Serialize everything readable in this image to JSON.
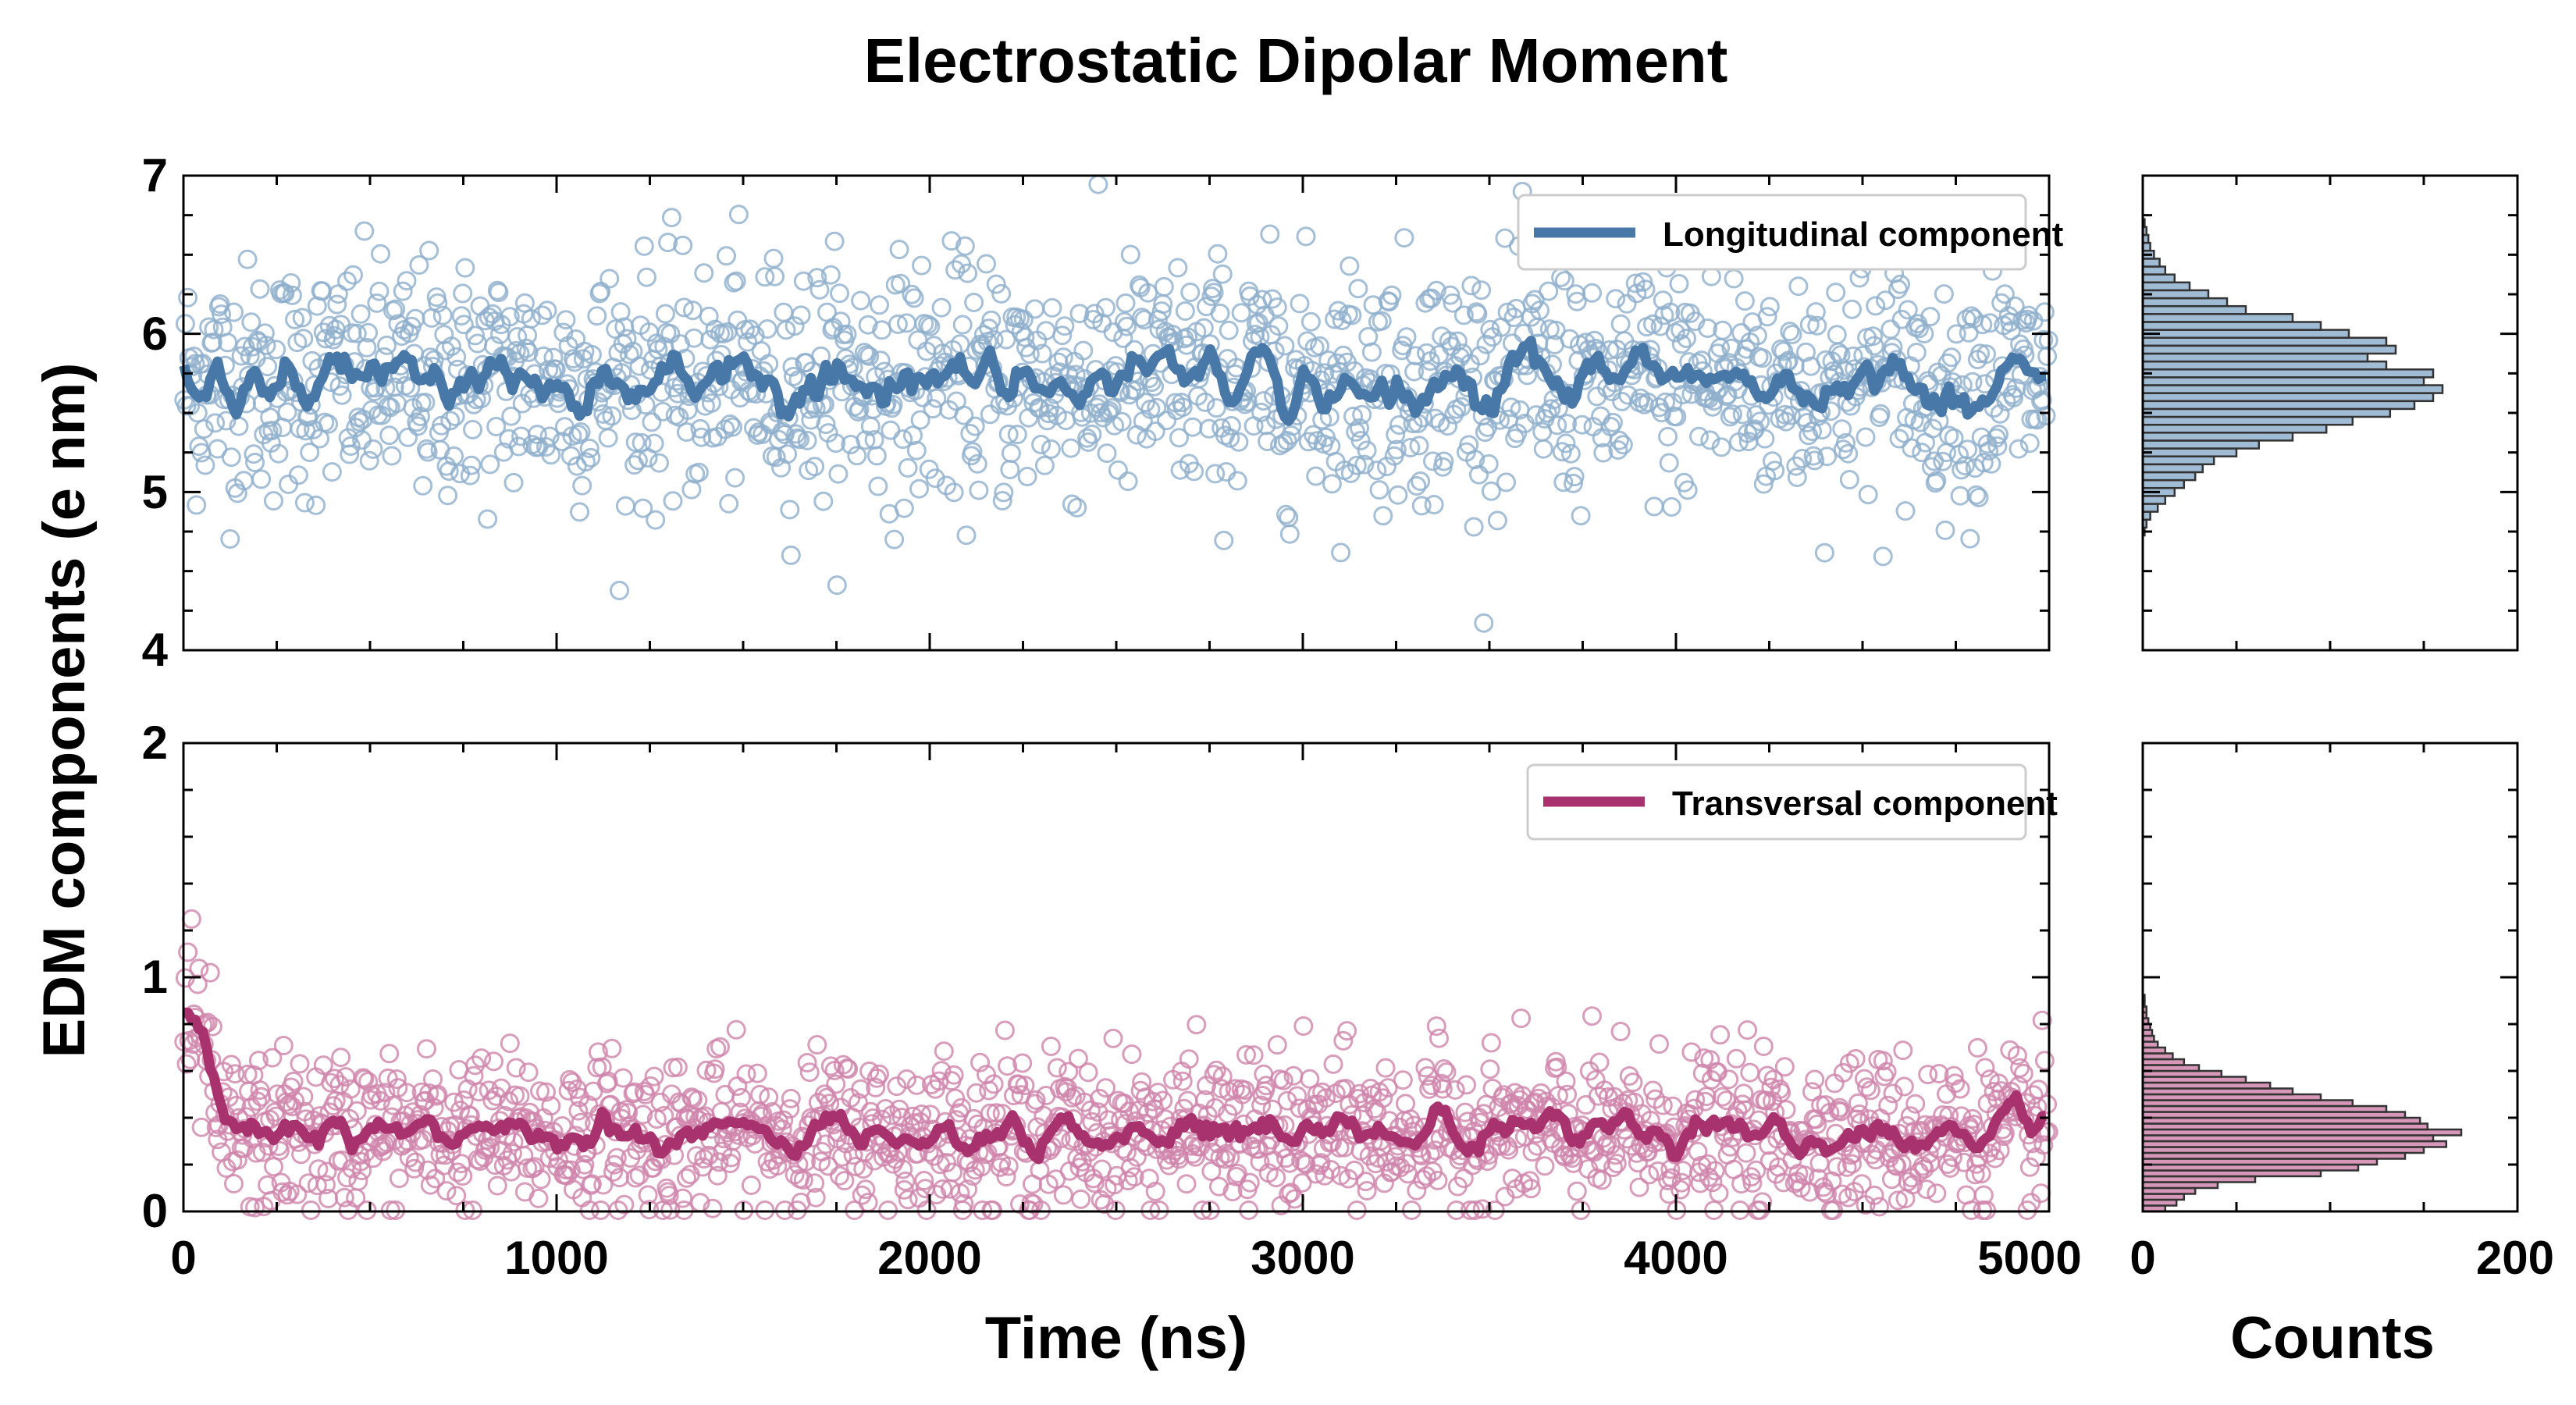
{
  "chart_data": {
    "type": "scatter",
    "title": "Electrostatic Dipolar Moment",
    "ylabel": "EDM components (e nm)",
    "xlabel": "Time (ns)",
    "hist_xlabel": "Counts",
    "grid": false,
    "x_ticks": [
      "0",
      "1000",
      "2000",
      "3000",
      "4000",
      "5000"
    ],
    "hist_x_ticks": [
      "0",
      "200"
    ],
    "panels": [
      {
        "name": "Longitudinal component",
        "legend_position": "top-right",
        "color": "#4878a8",
        "point_color": "#8fafcc",
        "xlim": [
          0,
          5000
        ],
        "ylim": [
          4,
          7
        ],
        "y_ticks": [
          "4",
          "5",
          "6",
          "7"
        ],
        "mean": 5.7,
        "spread": 0.38,
        "hist_xlim": [
          0,
          200
        ],
        "hist_bin_width": 0.05,
        "hist": [
          [
            4.75,
            1
          ],
          [
            4.8,
            2
          ],
          [
            4.85,
            4
          ],
          [
            4.9,
            8
          ],
          [
            4.95,
            12
          ],
          [
            5.0,
            17
          ],
          [
            5.05,
            22
          ],
          [
            5.1,
            28
          ],
          [
            5.15,
            32
          ],
          [
            5.2,
            38
          ],
          [
            5.25,
            50
          ],
          [
            5.3,
            62
          ],
          [
            5.35,
            80
          ],
          [
            5.4,
            98
          ],
          [
            5.45,
            112
          ],
          [
            5.5,
            132
          ],
          [
            5.55,
            145
          ],
          [
            5.6,
            155
          ],
          [
            5.65,
            160
          ],
          [
            5.7,
            150
          ],
          [
            5.75,
            155
          ],
          [
            5.8,
            130
          ],
          [
            5.85,
            120
          ],
          [
            5.9,
            135
          ],
          [
            5.95,
            130
          ],
          [
            6.0,
            110
          ],
          [
            6.05,
            95
          ],
          [
            6.1,
            80
          ],
          [
            6.15,
            55
          ],
          [
            6.2,
            45
          ],
          [
            6.25,
            35
          ],
          [
            6.3,
            25
          ],
          [
            6.35,
            17
          ],
          [
            6.4,
            12
          ],
          [
            6.45,
            9
          ],
          [
            6.5,
            6
          ],
          [
            6.55,
            4
          ],
          [
            6.6,
            3
          ],
          [
            6.65,
            2
          ],
          [
            6.7,
            1
          ]
        ]
      },
      {
        "name": "Transversal component",
        "legend_position": "top-right",
        "color": "#a8326e",
        "point_color": "#d085ab",
        "xlim": [
          0,
          5000
        ],
        "ylim": [
          0,
          2
        ],
        "y_ticks": [
          "0",
          "1",
          "2"
        ],
        "mean": 0.33,
        "spread": 0.17,
        "hist_xlim": [
          0,
          200
        ],
        "hist_bin_width": 0.025,
        "hist": [
          [
            0.0125,
            12
          ],
          [
            0.0375,
            18
          ],
          [
            0.0625,
            22
          ],
          [
            0.0875,
            28
          ],
          [
            0.1125,
            40
          ],
          [
            0.1375,
            60
          ],
          [
            0.1625,
            95
          ],
          [
            0.1875,
            115
          ],
          [
            0.2125,
            125
          ],
          [
            0.2375,
            140
          ],
          [
            0.2625,
            150
          ],
          [
            0.2875,
            162
          ],
          [
            0.3125,
            155
          ],
          [
            0.3375,
            170
          ],
          [
            0.3625,
            152
          ],
          [
            0.3875,
            148
          ],
          [
            0.4125,
            140
          ],
          [
            0.4375,
            130
          ],
          [
            0.4625,
            112
          ],
          [
            0.4875,
            95
          ],
          [
            0.5125,
            80
          ],
          [
            0.5375,
            68
          ],
          [
            0.5625,
            55
          ],
          [
            0.5875,
            42
          ],
          [
            0.6125,
            30
          ],
          [
            0.6375,
            22
          ],
          [
            0.6625,
            16
          ],
          [
            0.6875,
            12
          ],
          [
            0.7125,
            8
          ],
          [
            0.7375,
            6
          ],
          [
            0.7625,
            5
          ],
          [
            0.7875,
            4
          ],
          [
            0.8125,
            3
          ],
          [
            0.8375,
            2
          ],
          [
            0.8625,
            2
          ],
          [
            0.8875,
            1
          ],
          [
            0.9125,
            1
          ]
        ]
      }
    ]
  }
}
